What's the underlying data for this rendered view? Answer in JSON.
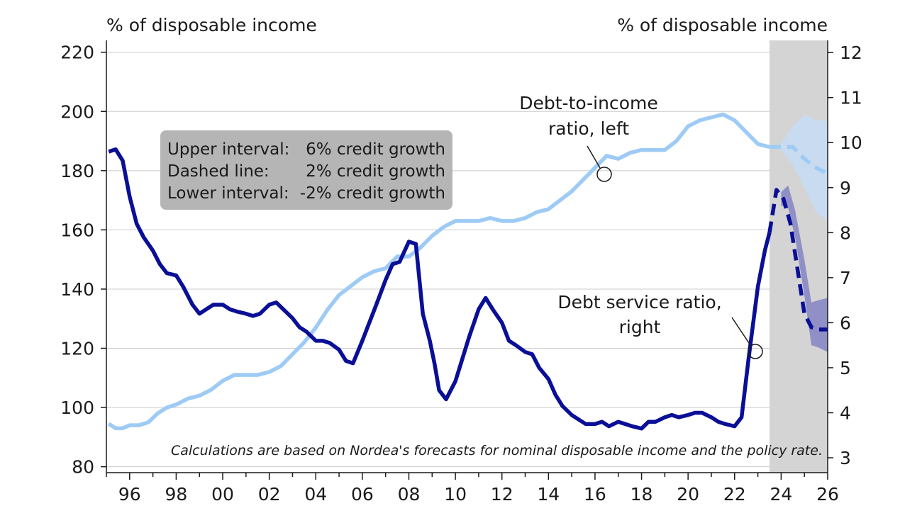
{
  "chart_data": {
    "type": "line",
    "left_axis_title": "% of disposable income",
    "right_axis_title": "% of disposable income",
    "x_range": [
      1995.0,
      2026.0
    ],
    "x_ticks": [
      1996,
      1998,
      2000,
      2002,
      2004,
      2006,
      2008,
      2010,
      2012,
      2014,
      2016,
      2018,
      2020,
      2022,
      2024,
      2026
    ],
    "x_tick_labels": [
      "96",
      "98",
      "00",
      "02",
      "04",
      "06",
      "08",
      "10",
      "12",
      "14",
      "16",
      "18",
      "20",
      "22",
      "24",
      "26"
    ],
    "ylim_left": [
      78,
      224
    ],
    "y_ticks_left": [
      80,
      100,
      120,
      140,
      160,
      180,
      200,
      220
    ],
    "ylim_right": [
      2.67,
      12.27
    ],
    "y_ticks_right": [
      3,
      4,
      5,
      6,
      7,
      8,
      9,
      10,
      11,
      12
    ],
    "forecast_start": 2023.5,
    "grid": true,
    "colors": {
      "debt_to_income": "#9ecbf5",
      "debt_service": "#0a0f96",
      "shade": "#d4d4d4",
      "dti_band": "#c5dcf4",
      "dsr_band": "#8888c4",
      "legend_box": "#b5b5b5"
    },
    "legend_box": {
      "rows": [
        {
          "label": "Upper interval:",
          "value": "6% credit growth"
        },
        {
          "label": "Dashed line:",
          "value": "2% credit growth"
        },
        {
          "label": "Lower interval:",
          "value": "-2% credit growth"
        }
      ]
    },
    "annotations": {
      "debt_to_income_lines": [
        "Debt-to-income",
        "ratio, left"
      ],
      "debt_service_lines": [
        "Debt service ratio,",
        "right"
      ],
      "footnote": "Calculations are based on Nordea's forecasts for nominal disposable income and the policy rate."
    },
    "series": [
      {
        "name": "Debt-to-income ratio, left",
        "axis": "left",
        "style": "solid",
        "x": [
          1995.1,
          1995.4,
          1995.7,
          1996.0,
          1996.4,
          1996.8,
          1997.2,
          1997.6,
          1998.0,
          1998.5,
          1999.0,
          1999.5,
          2000.0,
          2000.5,
          2001.0,
          2001.5,
          2002.0,
          2002.5,
          2003.0,
          2003.5,
          2004.0,
          2004.5,
          2005.0,
          2005.5,
          2006.0,
          2006.5,
          2007.0,
          2007.5,
          2008.0,
          2008.5,
          2009.0,
          2009.5,
          2010.0,
          2010.5,
          2011.0,
          2011.5,
          2012.0,
          2012.5,
          2013.0,
          2013.5,
          2014.0,
          2014.5,
          2015.0,
          2015.5,
          2016.0,
          2016.5,
          2017.0,
          2017.5,
          2018.0,
          2018.5,
          2019.0,
          2019.5,
          2020.0,
          2020.5,
          2021.0,
          2021.5,
          2022.0,
          2022.5,
          2023.0,
          2023.5
        ],
        "y": [
          94.5,
          93,
          93,
          94,
          94,
          95,
          98,
          100,
          101,
          103,
          104,
          106,
          109,
          111,
          111,
          111,
          112,
          114,
          118,
          122,
          127,
          133,
          138,
          141,
          144,
          146,
          147,
          151,
          151,
          154,
          158,
          161,
          163,
          163,
          163,
          164,
          163,
          163,
          164,
          166,
          167,
          170,
          173,
          177,
          181,
          185,
          184,
          186,
          187,
          187,
          187,
          190,
          195,
          197,
          198,
          199,
          197,
          193,
          189,
          188
        ]
      },
      {
        "name": "Debt-to-income forecast",
        "axis": "left",
        "style": "dashed",
        "x": [
          2023.5,
          2024.0,
          2024.5,
          2025.0,
          2025.5,
          2026.0
        ],
        "y": [
          188,
          188,
          188,
          184,
          181,
          179
        ]
      },
      {
        "name": "Debt service ratio, right",
        "axis": "right",
        "style": "solid",
        "x": [
          1995.1,
          1995.4,
          1995.7,
          1996.0,
          1996.3,
          1996.6,
          1997.0,
          1997.3,
          1997.6,
          1998.0,
          1998.3,
          1998.7,
          1999.0,
          1999.3,
          1999.6,
          2000.0,
          2000.3,
          2000.6,
          2001.0,
          2001.3,
          2001.6,
          2002.0,
          2002.3,
          2002.6,
          2003.0,
          2003.3,
          2003.6,
          2004.0,
          2004.3,
          2004.6,
          2005.0,
          2005.3,
          2005.6,
          2006.0,
          2006.3,
          2006.6,
          2007.0,
          2007.3,
          2007.6,
          2008.0,
          2008.3,
          2008.6,
          2008.9,
          2009.1,
          2009.3,
          2009.6,
          2010.0,
          2010.3,
          2010.6,
          2011.0,
          2011.3,
          2011.6,
          2012.0,
          2012.3,
          2012.6,
          2013.0,
          2013.3,
          2013.6,
          2014.0,
          2014.3,
          2014.6,
          2015.0,
          2015.3,
          2015.6,
          2016.0,
          2016.3,
          2016.6,
          2017.0,
          2017.3,
          2017.6,
          2018.0,
          2018.3,
          2018.6,
          2019.0,
          2019.3,
          2019.6,
          2020.0,
          2020.3,
          2020.6,
          2021.0,
          2021.3,
          2021.6,
          2022.0,
          2022.3,
          2022.6,
          2023.0,
          2023.3,
          2023.5
        ],
        "y": [
          9.8,
          9.85,
          9.6,
          8.8,
          8.2,
          7.9,
          7.6,
          7.3,
          7.1,
          7.05,
          6.8,
          6.4,
          6.2,
          6.3,
          6.4,
          6.4,
          6.3,
          6.25,
          6.2,
          6.15,
          6.2,
          6.4,
          6.45,
          6.3,
          6.1,
          5.9,
          5.8,
          5.6,
          5.6,
          5.55,
          5.4,
          5.15,
          5.1,
          5.6,
          6.0,
          6.4,
          6.95,
          7.3,
          7.35,
          7.8,
          7.75,
          6.2,
          5.6,
          5.1,
          4.5,
          4.3,
          4.7,
          5.2,
          5.7,
          6.3,
          6.55,
          6.3,
          6.0,
          5.6,
          5.5,
          5.35,
          5.3,
          5.0,
          4.75,
          4.4,
          4.15,
          3.95,
          3.85,
          3.75,
          3.75,
          3.8,
          3.7,
          3.8,
          3.75,
          3.7,
          3.65,
          3.8,
          3.8,
          3.9,
          3.95,
          3.9,
          3.95,
          4.0,
          4.0,
          3.9,
          3.8,
          3.75,
          3.7,
          3.9,
          5.2,
          6.8,
          7.6,
          8.0
        ]
      },
      {
        "name": "Debt service forecast",
        "axis": "right",
        "style": "dashed",
        "x": [
          2023.5,
          2023.8,
          2024.1,
          2024.4,
          2024.7,
          2025.0,
          2025.3,
          2025.6,
          2026.0
        ],
        "y": [
          8.0,
          8.95,
          8.75,
          8.2,
          7.2,
          6.2,
          5.9,
          5.85,
          5.85
        ]
      }
    ],
    "bands": [
      {
        "name": "Debt-to-income interval",
        "axis": "left",
        "x": [
          2023.5,
          2024.0,
          2024.5,
          2025.0,
          2025.5,
          2026.0
        ],
        "upper": [
          188,
          189,
          195,
          199,
          197,
          197
        ],
        "lower": [
          188,
          187,
          182,
          174,
          166,
          163
        ]
      },
      {
        "name": "Debt service interval",
        "axis": "right",
        "x": [
          2024.0,
          2024.3,
          2024.6,
          2025.0,
          2025.3,
          2025.6,
          2026.0
        ],
        "upper": [
          8.9,
          9.05,
          8.5,
          7.4,
          6.45,
          6.5,
          6.55
        ],
        "lower": [
          8.6,
          8.55,
          7.9,
          6.6,
          5.5,
          5.45,
          5.35
        ]
      }
    ]
  }
}
